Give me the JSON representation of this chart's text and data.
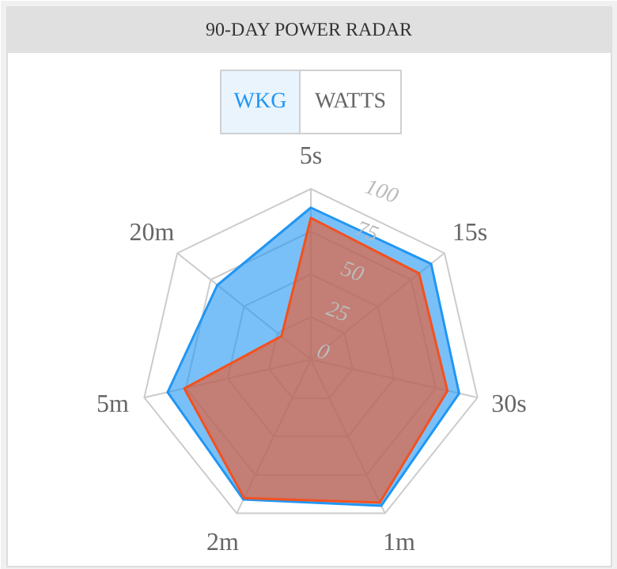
{
  "chart_data": {
    "type": "radar",
    "title": "90-DAY POWER RADAR",
    "annotations": [
      "WKG",
      "WATTS"
    ],
    "categories": [
      "5s",
      "15s",
      "30s",
      "1m",
      "2m",
      "5m",
      "20m"
    ],
    "ylim": [
      0,
      100
    ],
    "yticks": [
      0,
      25,
      50,
      75,
      100
    ],
    "series": [
      {
        "color": "#2196f3",
        "values": [
          89,
          90,
          89,
          95,
          91,
          86,
          70
        ]
      },
      {
        "color": "#f4511e",
        "values": [
          83,
          81,
          82,
          93,
          90,
          76,
          22
        ]
      }
    ]
  }
}
